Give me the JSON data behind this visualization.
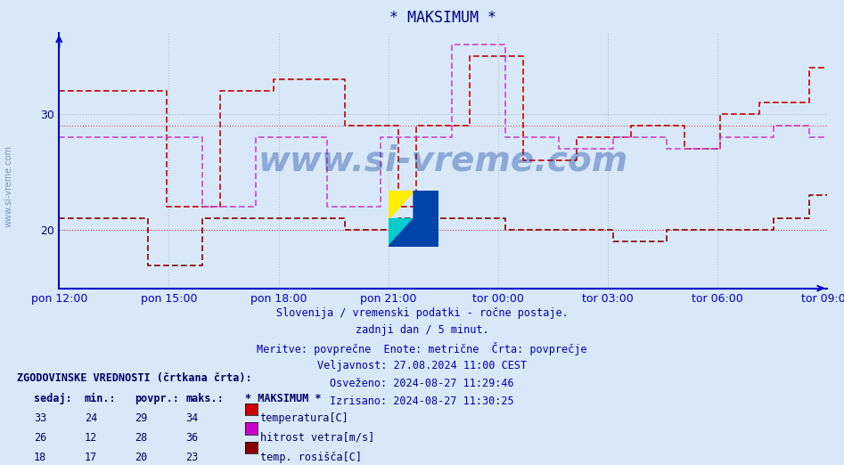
{
  "title": "* MAKSIMUM *",
  "title_color": "#000080",
  "bg_color": "#d8e8f8",
  "grid_color": "#b0b8c8",
  "axis_color": "#0000cc",
  "text_color": "#0000aa",
  "xlabel_color": "#000080",
  "ylim": [
    15,
    37
  ],
  "yticks": [
    20,
    30
  ],
  "xtick_labels": [
    "pon 12:00",
    "pon 15:00",
    "pon 18:00",
    "pon 21:00",
    "tor 00:00",
    "tor 03:00",
    "tor 06:00",
    "tor 09:00"
  ],
  "subtitle_lines": [
    "Slovenija / vremenski podatki - ročne postaje.",
    "zadnji dan / 5 minut.",
    "Meritve: povprečne  Enote: metrične  Črta: povprečje",
    "Veljavnost: 27.08.2024 11:00 CEST",
    "Osveženo: 2024-08-27 11:29:46",
    "Izrisano: 2024-08-27 11:30:25"
  ],
  "legend_header": "ZGODOVINSKE VREDNOSTI (črtkana črta):",
  "legend_cols": [
    "sedaj:",
    "min.:",
    "povpr.:",
    "maks.:",
    "* MAKSIMUM *"
  ],
  "legend_rows": [
    [
      33,
      24,
      29,
      34,
      "temperatura[C]",
      "#cc0000"
    ],
    [
      26,
      12,
      28,
      36,
      "hitrost vetra[m/s]",
      "#cc00cc"
    ],
    [
      18,
      17,
      20,
      23,
      "temp. rosišča[C]",
      "#880000"
    ]
  ],
  "watermark": "www.si-vreme.com",
  "temp_color": "#cc0000",
  "wind_color": "#cc44cc",
  "dew_color": "#880000",
  "n_points": 216
}
